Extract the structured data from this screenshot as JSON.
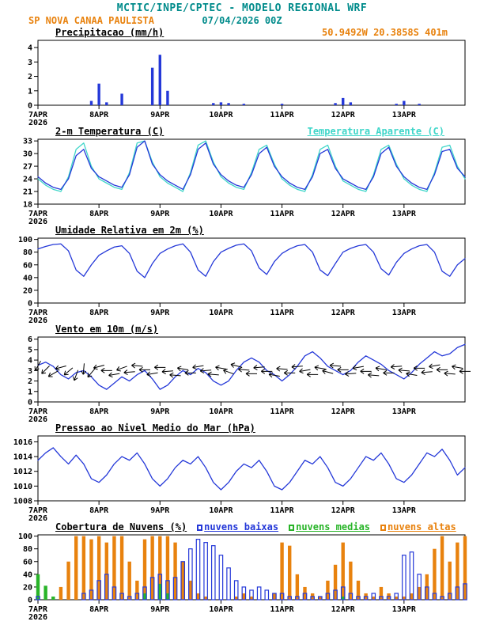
{
  "header": {
    "title": "MCTIC/INPE/CPTEC - MODELO REGIONAL WRF",
    "station": "SP NOVA CANAA PAULISTA",
    "run": "07/04/2026 00Z",
    "coords": "50.9492W 20.3858S 401m"
  },
  "colors": {
    "teal": "#008b8b",
    "orange": "#e8820e",
    "blue": "#2438d8",
    "cyan": "#3fd6c9",
    "green": "#28b428",
    "black": "#000000"
  },
  "x_axis": {
    "hours_total": 168,
    "step_hours": 3,
    "tick_hours": [
      0,
      24,
      48,
      72,
      96,
      120,
      144
    ],
    "tick_labels": [
      "7APR",
      "8APR",
      "9APR",
      "10APR",
      "11APR",
      "12APR",
      "13APR"
    ],
    "year_label": "2026"
  },
  "chart_data": [
    {
      "type": "bar",
      "title": "Precipitacao (mm/h)",
      "ylim": [
        0,
        4.5
      ],
      "yticks": [
        0,
        1,
        2,
        3,
        4
      ],
      "color": "blue",
      "values": [
        0,
        0,
        0,
        0,
        0,
        0,
        0,
        0.3,
        1.5,
        0.2,
        0,
        0.8,
        0,
        0,
        0,
        2.6,
        3.5,
        1,
        0,
        0,
        0,
        0,
        0,
        0.15,
        0.2,
        0.15,
        0,
        0.1,
        0,
        0,
        0,
        0,
        0.1,
        0,
        0,
        0,
        0,
        0,
        0,
        0.15,
        0.5,
        0.2,
        0,
        0,
        0,
        0,
        0,
        0.1,
        0.3,
        0,
        0.1,
        0,
        0,
        0,
        0,
        0,
        0
      ]
    },
    {
      "type": "line",
      "title": "2-m Temperatura (C)",
      "title_right": "Temperatura Aparente (C)",
      "ylim": [
        18,
        33.4
      ],
      "yticks": [
        18,
        21,
        24,
        27,
        30,
        33
      ],
      "series": [
        {
          "name": "Temperatura Aparente (C)",
          "color": "cyan",
          "values": [
            24,
            22.5,
            21.5,
            21,
            24.5,
            31,
            32.5,
            27,
            24,
            23,
            22,
            21.5,
            25.5,
            32.5,
            33,
            28,
            24.5,
            23,
            22,
            21,
            25.5,
            32,
            33,
            28,
            24.5,
            23,
            22,
            21.5,
            25.5,
            31,
            32,
            27.5,
            24,
            22.5,
            21.5,
            21,
            25,
            31,
            32,
            27,
            23.5,
            22.5,
            21.5,
            21,
            25,
            31,
            32,
            27.5,
            24,
            22.5,
            21.5,
            21,
            25.5,
            31.5,
            32,
            27,
            24
          ]
        },
        {
          "name": "2-m Temperatura (C)",
          "color": "blue",
          "values": [
            24.5,
            23,
            22,
            21.5,
            24,
            29.5,
            31,
            26.5,
            24.5,
            23.5,
            22.5,
            22,
            25,
            31.5,
            33,
            27.5,
            25,
            23.5,
            22.5,
            21.5,
            25,
            31,
            32.5,
            27.5,
            25,
            23.5,
            22.5,
            22,
            25,
            30,
            31.5,
            27,
            24.5,
            23,
            22,
            21.5,
            24.5,
            30,
            31,
            26.5,
            24,
            23,
            22,
            21.5,
            24.5,
            30,
            31.5,
            27,
            24.5,
            23,
            22,
            21.5,
            25,
            30.5,
            31,
            26.5,
            24.5
          ]
        }
      ]
    },
    {
      "type": "line",
      "title": "Umidade Relativa em 2m (%)",
      "ylim": [
        0,
        102
      ],
      "yticks": [
        0,
        20,
        40,
        60,
        80,
        100
      ],
      "series": [
        {
          "name": "Umidade Relativa em 2m",
          "color": "blue",
          "values": [
            85,
            89,
            92,
            93,
            82,
            52,
            42,
            60,
            75,
            82,
            88,
            90,
            78,
            50,
            40,
            62,
            78,
            85,
            90,
            93,
            80,
            52,
            42,
            65,
            80,
            86,
            91,
            93,
            82,
            55,
            45,
            65,
            78,
            85,
            90,
            92,
            80,
            52,
            43,
            62,
            80,
            86,
            90,
            92,
            80,
            54,
            44,
            64,
            78,
            85,
            90,
            92,
            80,
            50,
            42,
            60,
            70
          ]
        }
      ]
    },
    {
      "type": "line",
      "title": "Vento em 10m (m/s)",
      "ylim": [
        0,
        6.2
      ],
      "yticks": [
        0,
        1,
        2,
        3,
        4,
        5,
        6
      ],
      "series": [
        {
          "name": "Vento em 10m",
          "color": "blue",
          "values": [
            3.5,
            3.8,
            3.4,
            2.6,
            2.2,
            2.8,
            3,
            2.4,
            1.6,
            1.2,
            1.8,
            2.4,
            2,
            2.6,
            3,
            2.2,
            1.2,
            1.6,
            2.4,
            3,
            2.6,
            3.2,
            2.8,
            2,
            1.6,
            2,
            3,
            3.8,
            4.2,
            3.8,
            3,
            2.6,
            2,
            2.6,
            3.4,
            4.4,
            4.8,
            4.2,
            3.4,
            3,
            2.6,
            3,
            3.8,
            4.4,
            4,
            3.6,
            3,
            2.6,
            2.2,
            2.8,
            3.6,
            4.2,
            4.8,
            4.4,
            4.6,
            5.2,
            5.5
          ]
        }
      ],
      "barbs": {
        "y": 3,
        "dirs_deg": [
          120,
          135,
          150,
          165,
          140,
          110,
          95,
          130,
          165,
          180,
          170,
          160,
          175,
          185,
          180,
          170,
          180,
          175,
          185,
          190,
          180,
          170,
          175,
          185,
          190,
          200,
          195,
          185,
          180,
          175,
          180,
          190,
          185,
          180,
          175,
          170,
          180,
          190,
          195,
          185,
          180,
          175,
          170,
          180,
          185,
          190,
          180,
          175,
          185,
          190,
          180,
          175,
          170,
          180,
          185,
          190,
          180
        ]
      }
    },
    {
      "type": "line",
      "title": "Pressao ao Nivel Medio do Mar (hPa)",
      "ylim": [
        1008,
        1016.8
      ],
      "yticks": [
        1008,
        1010,
        1012,
        1014,
        1016
      ],
      "series": [
        {
          "name": "Pressao ao Nivel Medio do Mar",
          "color": "blue",
          "values": [
            1013.5,
            1014.5,
            1015.2,
            1014,
            1013,
            1014.2,
            1013,
            1011,
            1010.5,
            1011.5,
            1013,
            1014,
            1013.5,
            1014.5,
            1013,
            1011,
            1010,
            1011,
            1012.5,
            1013.5,
            1013,
            1014,
            1012.5,
            1010.5,
            1009.5,
            1010.5,
            1012,
            1013,
            1012.5,
            1013.5,
            1012,
            1010,
            1009.5,
            1010.5,
            1012,
            1013.5,
            1013,
            1014,
            1012.5,
            1010.5,
            1010,
            1011,
            1012.5,
            1014,
            1013.5,
            1014.5,
            1013,
            1011,
            1010.5,
            1011.5,
            1013,
            1014.5,
            1014,
            1015,
            1013.5,
            1011.5,
            1012.5
          ]
        }
      ]
    },
    {
      "type": "bars",
      "title": "Cobertura de Nuvens (%)",
      "ylim": [
        0,
        102
      ],
      "yticks": [
        0,
        20,
        40,
        60,
        80,
        100
      ],
      "legend": [
        {
          "label": "nuvens baixas",
          "color": "blue"
        },
        {
          "label": "nuvens medias",
          "color": "green"
        },
        {
          "label": "nuvens altas",
          "color": "orange"
        }
      ],
      "series": [
        {
          "name": "nuvens altas",
          "color": "orange",
          "fill": true,
          "values": [
            0,
            0,
            0,
            20,
            60,
            100,
            100,
            95,
            100,
            90,
            100,
            100,
            60,
            30,
            95,
            100,
            100,
            100,
            90,
            60,
            30,
            10,
            5,
            0,
            0,
            0,
            5,
            10,
            5,
            0,
            0,
            10,
            90,
            85,
            40,
            20,
            10,
            5,
            30,
            55,
            90,
            60,
            30,
            10,
            5,
            20,
            10,
            5,
            5,
            10,
            20,
            40,
            80,
            100,
            60,
            90,
            100
          ]
        },
        {
          "name": "nuvens medias",
          "color": "green",
          "fill": true,
          "values": [
            40,
            22,
            5,
            0,
            0,
            0,
            0,
            0,
            0,
            0,
            0,
            0,
            0,
            0,
            10,
            0,
            25,
            10,
            0,
            0,
            0,
            0,
            0,
            0,
            0,
            0,
            0,
            0,
            0,
            0,
            0,
            0,
            0,
            0,
            0,
            0,
            0,
            0,
            0,
            0,
            5,
            0,
            0,
            0,
            0,
            0,
            0,
            0,
            0,
            0,
            0,
            0,
            0,
            0,
            0,
            0,
            0
          ]
        },
        {
          "name": "nuvens baixas",
          "color": "blue",
          "fill": false,
          "values": [
            5,
            0,
            0,
            0,
            0,
            0,
            10,
            15,
            30,
            40,
            20,
            10,
            5,
            10,
            20,
            35,
            40,
            30,
            35,
            60,
            80,
            95,
            90,
            85,
            70,
            50,
            30,
            20,
            15,
            20,
            15,
            10,
            10,
            5,
            5,
            10,
            5,
            5,
            10,
            15,
            20,
            10,
            5,
            5,
            10,
            5,
            5,
            10,
            70,
            75,
            40,
            20,
            10,
            5,
            10,
            20,
            25
          ]
        }
      ]
    }
  ]
}
